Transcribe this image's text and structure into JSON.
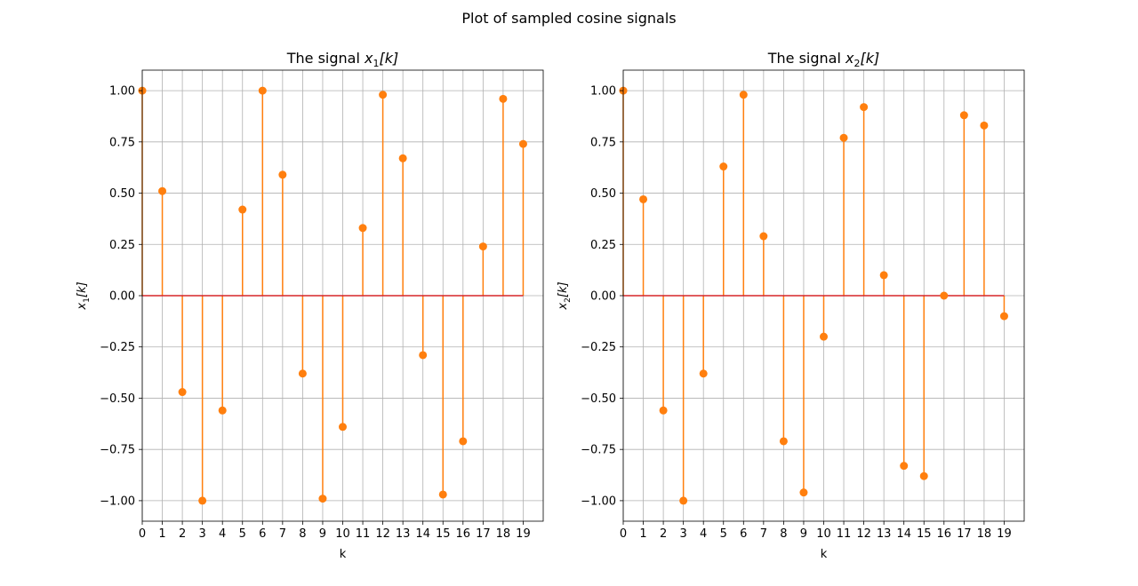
{
  "suptitle": "Plot of sampled cosine signals",
  "chart_data": [
    {
      "type": "stem",
      "title_prefix": "The signal ",
      "title_var": "x",
      "title_sub": "1",
      "title_arg": "[k]",
      "xlabel": "k",
      "ylabel_var": "x",
      "ylabel_sub": "1",
      "ylabel_arg": "[k]",
      "x": [
        0,
        1,
        2,
        3,
        4,
        5,
        6,
        7,
        8,
        9,
        10,
        11,
        12,
        13,
        14,
        15,
        16,
        17,
        18,
        19
      ],
      "values": [
        1.0,
        0.51,
        -0.47,
        -1.0,
        -0.56,
        0.42,
        1.0,
        0.59,
        -0.38,
        -0.99,
        -0.64,
        0.33,
        0.98,
        0.67,
        -0.29,
        -0.97,
        -0.71,
        0.24,
        0.96,
        0.74
      ],
      "xlim": [
        0,
        20
      ],
      "ylim": [
        -1.1,
        1.1
      ],
      "xticks": [
        0,
        1,
        2,
        3,
        4,
        5,
        6,
        7,
        8,
        9,
        10,
        11,
        12,
        13,
        14,
        15,
        16,
        17,
        18,
        19
      ],
      "yticks": [
        1.0,
        0.75,
        0.5,
        0.25,
        0.0,
        -0.25,
        -0.5,
        -0.75,
        -1.0
      ],
      "ytick_labels": [
        "1.00",
        "0.75",
        "0.50",
        "0.25",
        "0.00",
        "−0.25",
        "−0.50",
        "−0.75",
        "−1.00"
      ],
      "grid": true,
      "colors": {
        "stem": "#ff7f0e",
        "baseline": "#d62728",
        "grid": "#b0b0b0"
      }
    },
    {
      "type": "stem",
      "title_prefix": "The signal ",
      "title_var": "x",
      "title_sub": "2",
      "title_arg": "[k]",
      "xlabel": "k",
      "ylabel_var": "x",
      "ylabel_sub": "2",
      "ylabel_arg": "[k]",
      "x": [
        0,
        1,
        2,
        3,
        4,
        5,
        6,
        7,
        8,
        9,
        10,
        11,
        12,
        13,
        14,
        15,
        16,
        17,
        18,
        19
      ],
      "values": [
        1.0,
        0.47,
        -0.56,
        -1.0,
        -0.38,
        0.63,
        0.98,
        0.29,
        -0.71,
        -0.96,
        -0.2,
        0.77,
        0.92,
        0.1,
        -0.83,
        -0.88,
        0.0,
        0.88,
        0.83,
        -0.1
      ],
      "xlim": [
        0,
        20
      ],
      "ylim": [
        -1.1,
        1.1
      ],
      "xticks": [
        0,
        1,
        2,
        3,
        4,
        5,
        6,
        7,
        8,
        9,
        10,
        11,
        12,
        13,
        14,
        15,
        16,
        17,
        18,
        19
      ],
      "yticks": [
        1.0,
        0.75,
        0.5,
        0.25,
        0.0,
        -0.25,
        -0.5,
        -0.75,
        -1.0
      ],
      "ytick_labels": [
        "1.00",
        "0.75",
        "0.50",
        "0.25",
        "0.00",
        "−0.25",
        "−0.50",
        "−0.75",
        "−1.00"
      ],
      "grid": true,
      "colors": {
        "stem": "#ff7f0e",
        "baseline": "#d62728",
        "grid": "#b0b0b0"
      }
    }
  ]
}
